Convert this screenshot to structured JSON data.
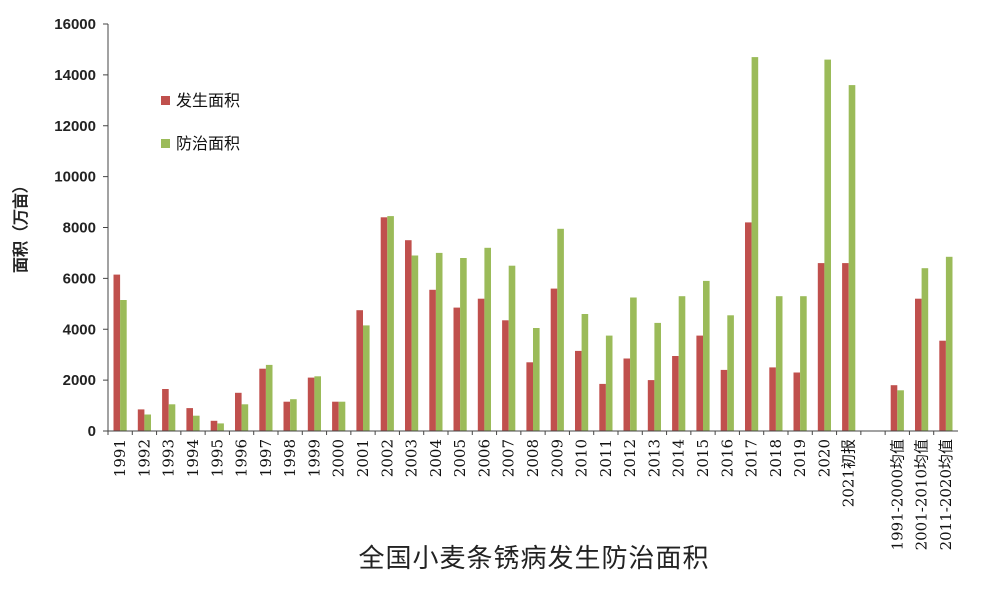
{
  "chart_data": {
    "type": "bar",
    "title": "全国小麦条锈病发生防治面积",
    "ylabel": "面积（万亩）",
    "xlabel": "",
    "ylim": [
      0,
      16000
    ],
    "yticks": [
      "0",
      "2000",
      "4000",
      "6000",
      "8000",
      "10000",
      "12000",
      "14000",
      "16000"
    ],
    "grid": false,
    "legend_position": "top-left",
    "categories": [
      "1991",
      "1992",
      "1993",
      "1994",
      "1995",
      "1996",
      "1997",
      "1998",
      "1999",
      "2000",
      "2001",
      "2002",
      "2003",
      "2004",
      "2005",
      "2006",
      "2007",
      "2008",
      "2009",
      "2010",
      "2011",
      "2012",
      "2013",
      "2014",
      "2015",
      "2016",
      "2017",
      "2018",
      "2019",
      "2020",
      "2021初报",
      "",
      "1991-2000均值",
      "2001-2010均值",
      "2011-2020均值"
    ],
    "series": [
      {
        "name": "发生面积",
        "color": "#c0504d",
        "values": [
          6150,
          850,
          1650,
          900,
          400,
          1500,
          2450,
          1150,
          2100,
          1150,
          4750,
          8400,
          7500,
          5550,
          4850,
          5200,
          4350,
          2700,
          5600,
          3150,
          1850,
          2850,
          2000,
          2950,
          3750,
          2400,
          8200,
          2500,
          2300,
          6600,
          6600,
          null,
          1800,
          5200,
          3550
        ]
      },
      {
        "name": "防治面积",
        "color": "#9bbb59",
        "values": [
          5150,
          650,
          1050,
          600,
          300,
          1050,
          2600,
          1250,
          2150,
          1150,
          4150,
          8450,
          6900,
          7000,
          6800,
          7200,
          6500,
          4050,
          7950,
          4600,
          3750,
          5250,
          4250,
          5300,
          5900,
          4550,
          14700,
          5300,
          5300,
          14600,
          13600,
          null,
          1600,
          6400,
          6850
        ]
      }
    ]
  }
}
